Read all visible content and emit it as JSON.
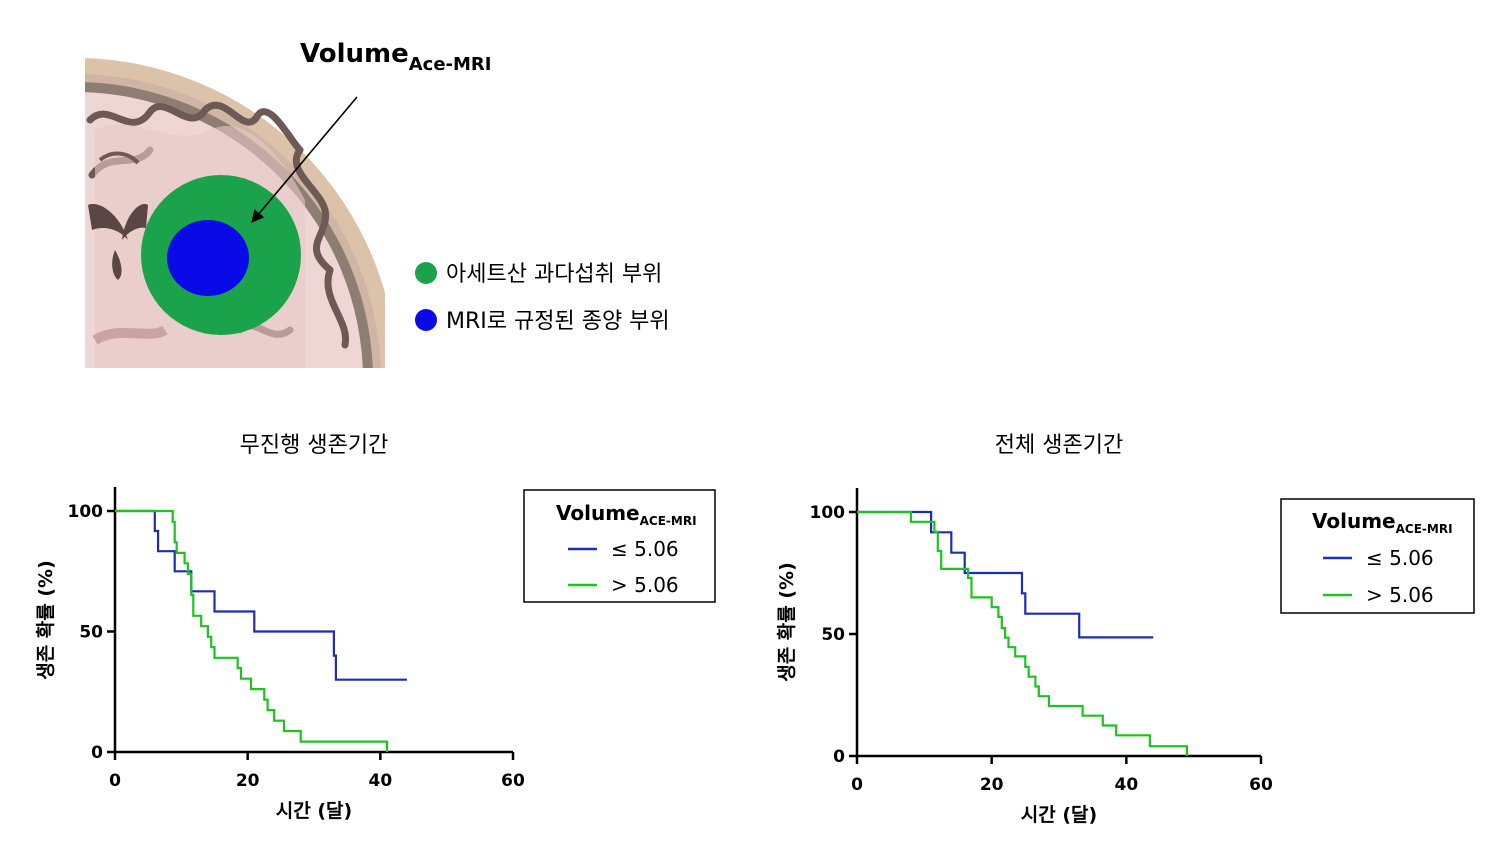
{
  "illustration": {
    "volume_label": "Volume",
    "volume_subscript": "Ace-MRI",
    "legend": [
      {
        "label": "아세트산 과다섭취 부위",
        "color": "#1aa34a"
      },
      {
        "label": "MRI로 규정된 종양 부위",
        "color": "#0a0ae8"
      }
    ]
  },
  "chart_data": [
    {
      "type": "line",
      "step": true,
      "title": "무진행 생존기간",
      "xlabel": "시간 (달)",
      "ylabel": "생존 확률 (%)",
      "xlim": [
        0,
        60
      ],
      "ylim": [
        0,
        100
      ],
      "xticks": [
        0,
        20,
        40,
        60
      ],
      "yticks": [
        0,
        50,
        100
      ],
      "legend_title": "Volume",
      "legend_title_sub": "ACE-MRI",
      "legend_position": "top-right",
      "series": [
        {
          "name": "≤ 5.06",
          "color": "#1c2fb0",
          "points": [
            [
              0,
              100
            ],
            [
              6,
              100
            ],
            [
              6,
              91.7
            ],
            [
              6.5,
              91.7
            ],
            [
              6.5,
              83.3
            ],
            [
              9,
              83.3
            ],
            [
              9,
              75
            ],
            [
              11.5,
              75
            ],
            [
              11.5,
              66.7
            ],
            [
              15,
              66.7
            ],
            [
              15,
              58.3
            ],
            [
              21,
              58.3
            ],
            [
              21,
              50
            ],
            [
              33,
              50
            ],
            [
              33,
              40
            ],
            [
              33.3,
              40
            ],
            [
              33.3,
              30
            ],
            [
              44,
              30
            ]
          ]
        },
        {
          "name": "> 5.06",
          "color": "#1fc21f",
          "points": [
            [
              0,
              100
            ],
            [
              8.7,
              100
            ],
            [
              8.7,
              95.5
            ],
            [
              9,
              95.5
            ],
            [
              9,
              87
            ],
            [
              9.3,
              87
            ],
            [
              9.3,
              82.6
            ],
            [
              10.5,
              82.6
            ],
            [
              10.5,
              78.3
            ],
            [
              11,
              78.3
            ],
            [
              11,
              73.9
            ],
            [
              11.5,
              73.9
            ],
            [
              11.5,
              65.2
            ],
            [
              11.8,
              65.2
            ],
            [
              11.8,
              56.5
            ],
            [
              13,
              56.5
            ],
            [
              13,
              52.2
            ],
            [
              14,
              52.2
            ],
            [
              14,
              47.8
            ],
            [
              14.5,
              47.8
            ],
            [
              14.5,
              43.5
            ],
            [
              15,
              43.5
            ],
            [
              15,
              39.1
            ],
            [
              18.5,
              39.1
            ],
            [
              18.5,
              34.8
            ],
            [
              19,
              34.8
            ],
            [
              19,
              30.4
            ],
            [
              20.5,
              30.4
            ],
            [
              20.5,
              26.1
            ],
            [
              22.5,
              26.1
            ],
            [
              22.5,
              21.7
            ],
            [
              23,
              21.7
            ],
            [
              23,
              17.4
            ],
            [
              24,
              17.4
            ],
            [
              24,
              13
            ],
            [
              25.5,
              13
            ],
            [
              25.5,
              8.7
            ],
            [
              28,
              8.7
            ],
            [
              28,
              4.3
            ],
            [
              41,
              4.3
            ],
            [
              41,
              0
            ]
          ]
        }
      ]
    },
    {
      "type": "line",
      "step": true,
      "title": "전체 생존기간",
      "xlabel": "시간  (달)",
      "ylabel": "생존 확률 (%)",
      "xlim": [
        0,
        60
      ],
      "ylim": [
        0,
        100
      ],
      "xticks": [
        0,
        20,
        40,
        60
      ],
      "yticks": [
        0,
        50,
        100
      ],
      "legend_title": "Volume",
      "legend_title_sub": "ACE-MRI",
      "legend_position": "top-right",
      "series": [
        {
          "name": "≤ 5.06",
          "color": "#1c2fb0",
          "points": [
            [
              0,
              100
            ],
            [
              11,
              100
            ],
            [
              11,
              91.7
            ],
            [
              14,
              91.7
            ],
            [
              14,
              83.3
            ],
            [
              16,
              83.3
            ],
            [
              16,
              75
            ],
            [
              24.5,
              75
            ],
            [
              24.5,
              66.7
            ],
            [
              25,
              66.7
            ],
            [
              25,
              58.3
            ],
            [
              33,
              58.3
            ],
            [
              33,
              48.6
            ],
            [
              44,
              48.6
            ]
          ]
        },
        {
          "name": "> 5.06",
          "color": "#1fc21f",
          "points": [
            [
              0,
              100
            ],
            [
              8,
              100
            ],
            [
              8,
              96
            ],
            [
              11.5,
              96
            ],
            [
              11.5,
              91.9
            ],
            [
              12,
              91.9
            ],
            [
              12,
              84
            ],
            [
              12.5,
              84
            ],
            [
              12.5,
              76.7
            ],
            [
              16.5,
              76.7
            ],
            [
              16.5,
              73
            ],
            [
              17,
              73
            ],
            [
              17,
              65
            ],
            [
              20,
              65
            ],
            [
              20,
              61
            ],
            [
              21,
              61
            ],
            [
              21,
              57
            ],
            [
              21.5,
              57
            ],
            [
              21.5,
              52.4
            ],
            [
              22,
              52.4
            ],
            [
              22,
              48.5
            ],
            [
              22.5,
              48.5
            ],
            [
              22.5,
              44.6
            ],
            [
              23.5,
              44.6
            ],
            [
              23.5,
              40.8
            ],
            [
              25,
              40.8
            ],
            [
              25,
              36.5
            ],
            [
              25.5,
              36.5
            ],
            [
              25.5,
              32.5
            ],
            [
              26.5,
              32.5
            ],
            [
              26.5,
              28.5
            ],
            [
              27,
              28.5
            ],
            [
              27,
              24.5
            ],
            [
              28.5,
              24.5
            ],
            [
              28.5,
              20.5
            ],
            [
              33.5,
              20.5
            ],
            [
              33.5,
              16.5
            ],
            [
              36.5,
              16.5
            ],
            [
              36.5,
              12.5
            ],
            [
              38.5,
              12.5
            ],
            [
              38.5,
              8.5
            ],
            [
              43.5,
              8.5
            ],
            [
              43.5,
              4
            ],
            [
              49,
              4
            ],
            [
              49,
              0
            ]
          ]
        }
      ]
    }
  ]
}
